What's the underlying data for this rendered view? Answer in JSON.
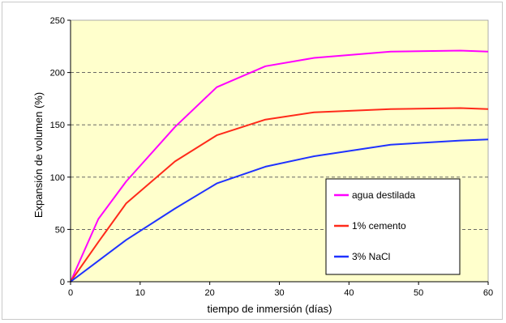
{
  "chart_data": {
    "type": "line",
    "title": "",
    "xlabel": "tiempo de inmersión (días)",
    "ylabel": "Expansión de volumen (%)",
    "xlim": [
      0,
      60
    ],
    "ylim": [
      0,
      250
    ],
    "x_ticks": [
      0,
      10,
      20,
      30,
      40,
      50,
      60
    ],
    "y_ticks": [
      0,
      50,
      100,
      150,
      200,
      250
    ],
    "grid": "horizontal dashed",
    "plot_background": "#ffffcc",
    "legend_position": "bottom-right",
    "series": [
      {
        "name": "agua destilada",
        "color": "#ff00ff",
        "x": [
          0,
          4,
          8,
          15,
          21,
          28,
          35,
          46,
          56,
          60
        ],
        "y": [
          0,
          60,
          96,
          148,
          186,
          206,
          214,
          220,
          221,
          220
        ]
      },
      {
        "name": "1% cemento",
        "color": "#ff2a1a",
        "x": [
          0,
          4,
          8,
          15,
          21,
          28,
          35,
          46,
          56,
          60
        ],
        "y": [
          0,
          38,
          75,
          115,
          140,
          155,
          162,
          165,
          166,
          165
        ]
      },
      {
        "name": "3% NaCl",
        "color": "#1f32ff",
        "x": [
          0,
          4,
          8,
          15,
          21,
          28,
          35,
          46,
          56,
          60
        ],
        "y": [
          0,
          20,
          40,
          70,
          94,
          110,
          120,
          131,
          135,
          136
        ]
      }
    ]
  }
}
